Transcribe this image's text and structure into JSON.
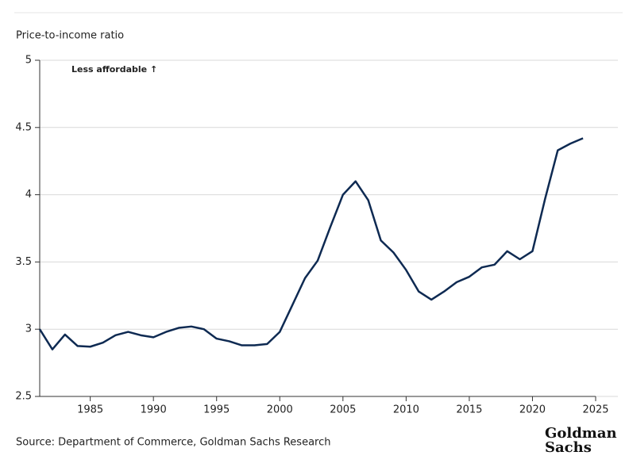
{
  "chart_data": {
    "type": "line",
    "y_label": "Price-to-income ratio",
    "annotation": "Less affordable ↑",
    "source": "Source: Department of Commerce, Goldman Sachs Research",
    "logo": [
      "Goldman",
      "Sachs"
    ],
    "x": [
      1981,
      1982,
      1983,
      1984,
      1985,
      1986,
      1987,
      1988,
      1989,
      1990,
      1991,
      1992,
      1993,
      1994,
      1995,
      1996,
      1997,
      1998,
      1999,
      2000,
      2001,
      2002,
      2003,
      2004,
      2005,
      2006,
      2007,
      2008,
      2009,
      2010,
      2011,
      2012,
      2013,
      2014,
      2015,
      2016,
      2017,
      2018,
      2019,
      2020,
      2021,
      2022,
      2023,
      2024
    ],
    "values": [
      3.0,
      2.85,
      2.96,
      2.875,
      2.87,
      2.9,
      2.955,
      2.98,
      2.955,
      2.94,
      2.98,
      3.01,
      3.02,
      3.0,
      2.93,
      2.91,
      2.88,
      2.88,
      2.89,
      2.98,
      3.18,
      3.38,
      3.51,
      3.76,
      4.0,
      4.1,
      3.96,
      3.66,
      3.57,
      3.44,
      3.28,
      3.22,
      3.28,
      3.35,
      3.39,
      3.46,
      3.48,
      3.58,
      3.52,
      3.58,
      3.97,
      4.33,
      4.38,
      4.42
    ],
    "color": "#0e2a52",
    "xlim": [
      1981,
      2025
    ],
    "xticks": [
      1985,
      1990,
      1995,
      2000,
      2005,
      2010,
      2015,
      2020,
      2025
    ],
    "ylim": [
      2.5,
      5
    ],
    "yticks": [
      2.5,
      3,
      3.5,
      4,
      4.5,
      5
    ],
    "grid": true
  }
}
